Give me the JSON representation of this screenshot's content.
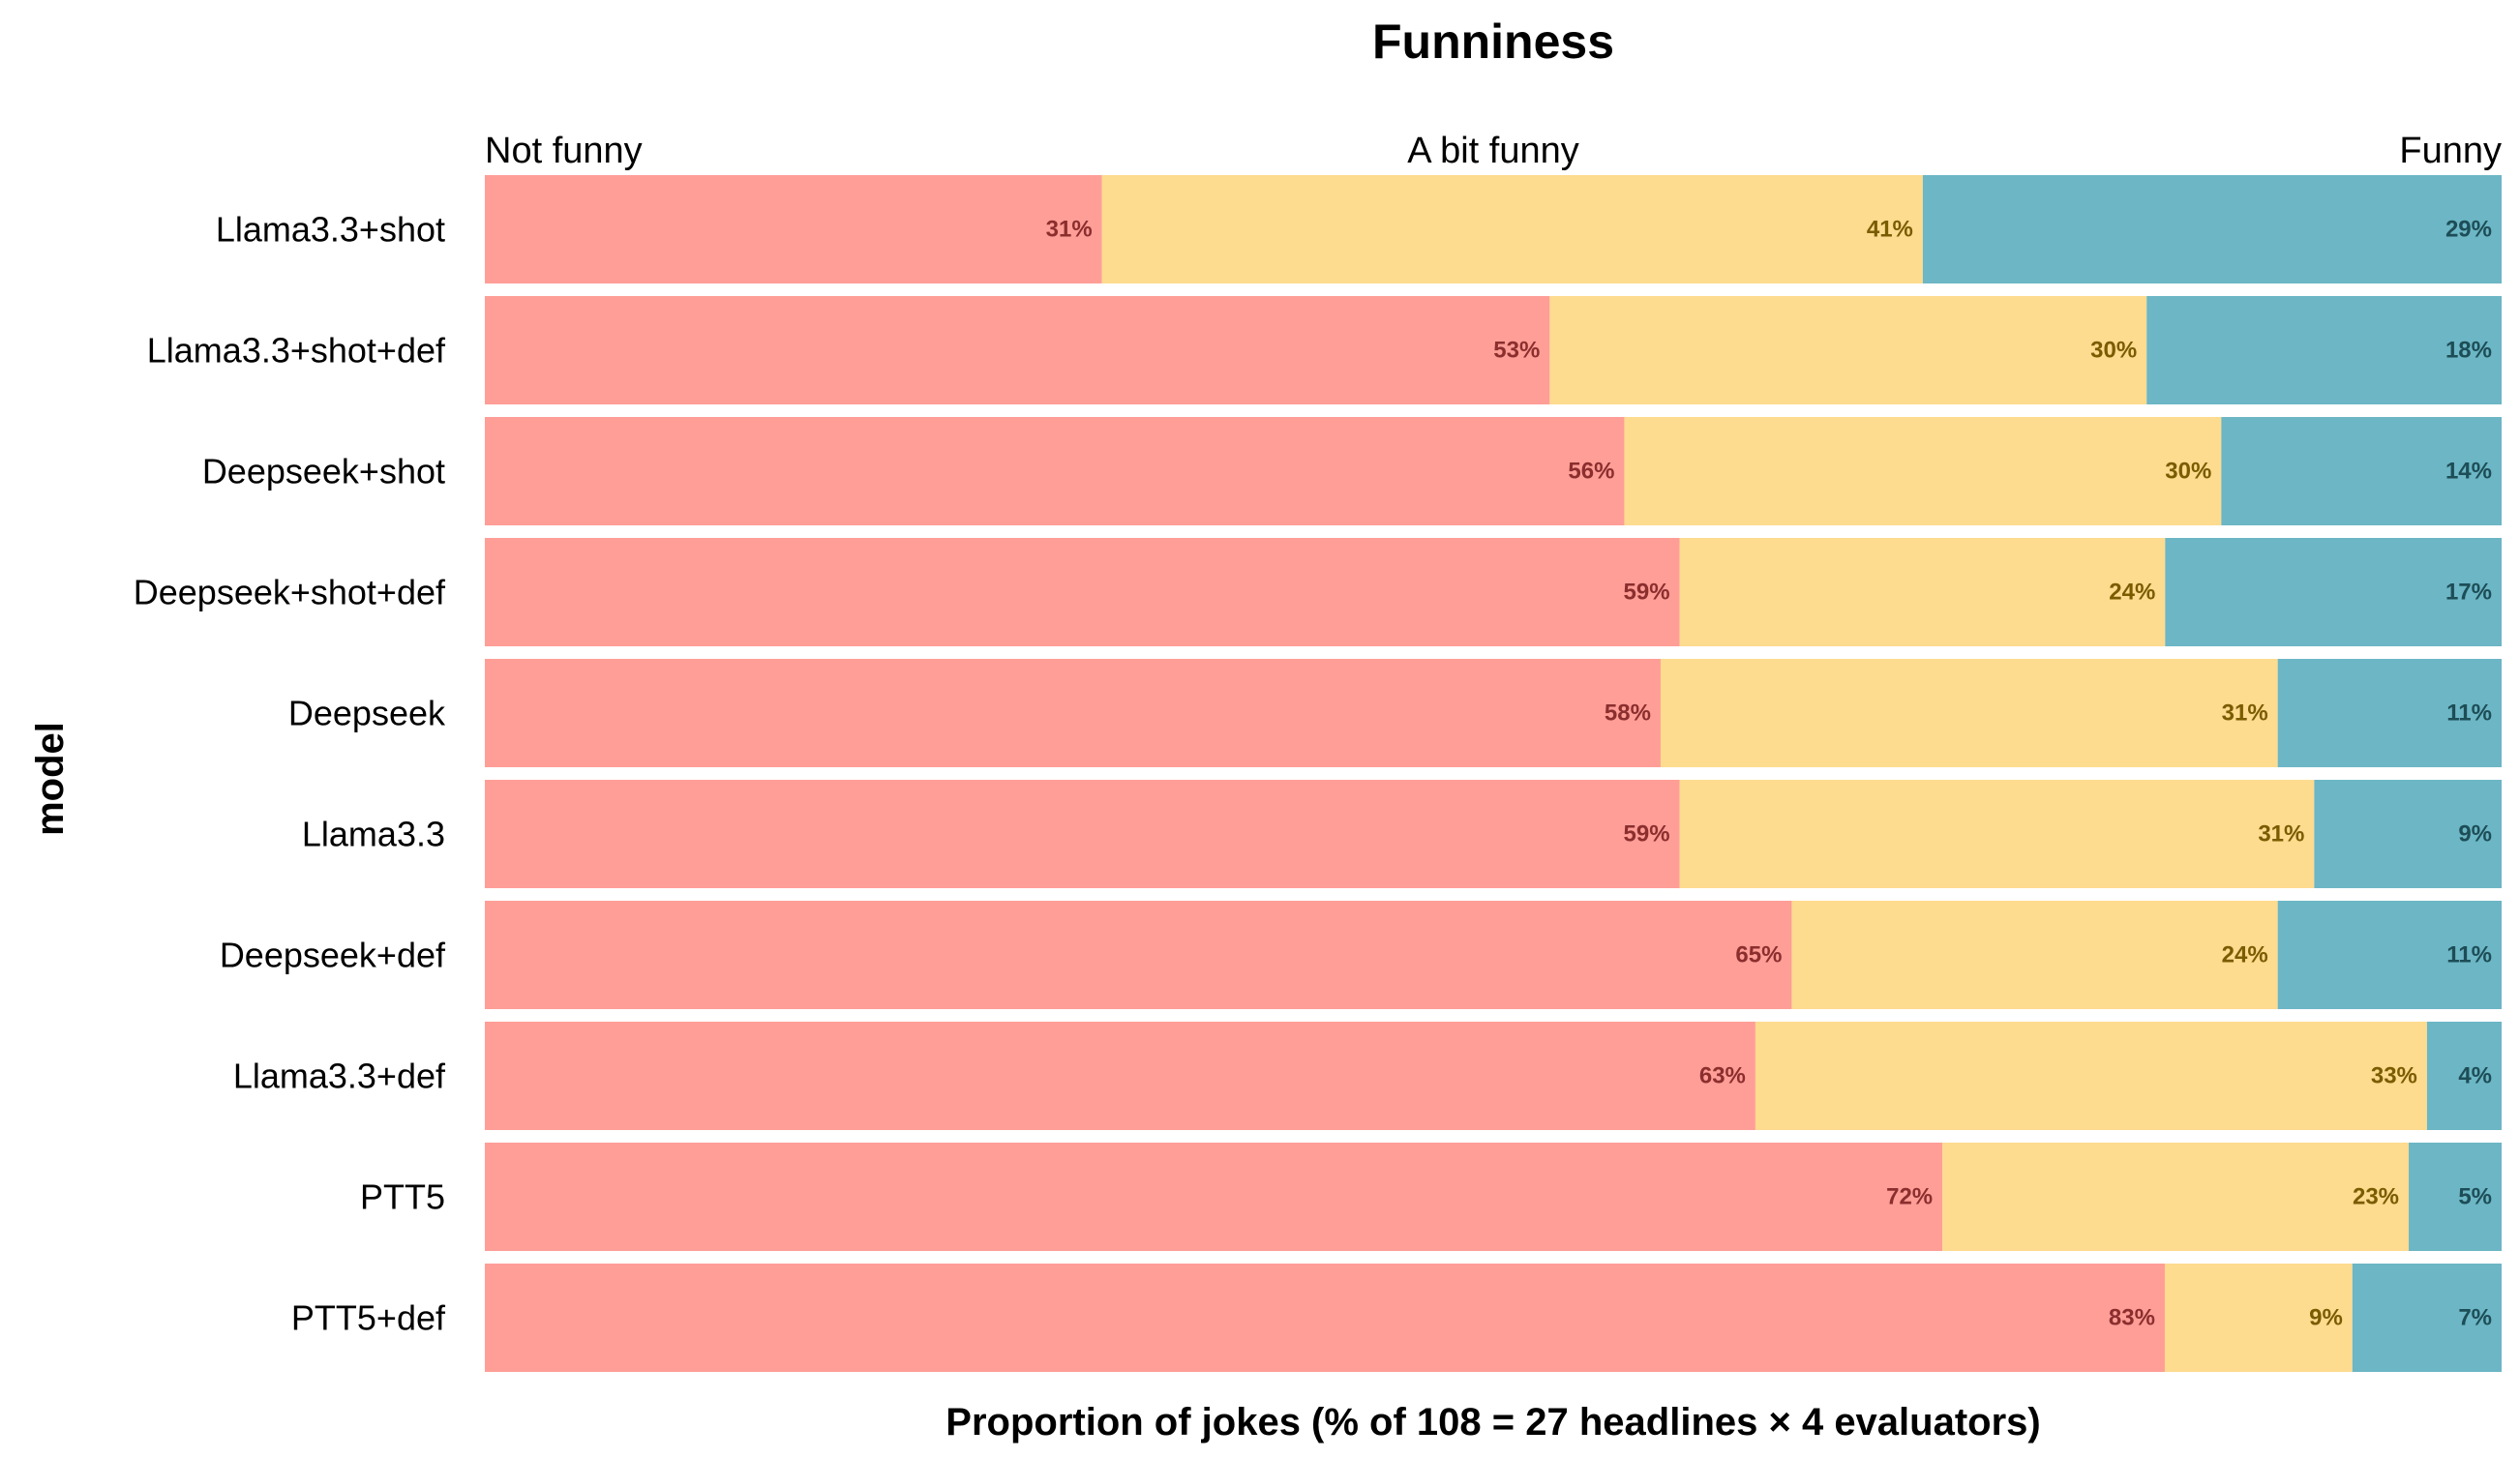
{
  "chart_data": {
    "type": "bar",
    "orientation": "horizontal",
    "stacked": true,
    "normalized": true,
    "title": "Funniness",
    "xlabel": "Proportion of jokes (% of 108 = 27 headlines × 4 evaluators)",
    "ylabel": "model",
    "xlim": [
      0,
      100
    ],
    "grid": false,
    "legend": "category labels along top",
    "categories": [
      "Llama3.3+shot",
      "Llama3.3+shot+def",
      "Deepseek+shot",
      "Deepseek+shot+def",
      "Deepseek",
      "Llama3.3",
      "Deepseek+def",
      "Llama3.3+def",
      "PTT5",
      "PTT5+def"
    ],
    "series": [
      {
        "name": "Not funny",
        "color": "#ff9e97",
        "label_color": "#8b2e2e",
        "values": [
          30.6,
          52.8,
          56.5,
          59.3,
          58.3,
          59.3,
          64.8,
          63.0,
          72.2,
          83.3
        ],
        "labels": [
          "31%",
          "53%",
          "56%",
          "59%",
          "58%",
          "59%",
          "65%",
          "63%",
          "72%",
          "83%"
        ]
      },
      {
        "name": "A bit funny",
        "color": "#fddb8f",
        "label_color": "#7a5c00",
        "values": [
          40.7,
          29.6,
          29.6,
          24.1,
          30.6,
          31.5,
          24.1,
          33.3,
          23.1,
          9.3
        ],
        "labels": [
          "41%",
          "30%",
          "30%",
          "24%",
          "31%",
          "31%",
          "24%",
          "33%",
          "23%",
          "9%"
        ]
      },
      {
        "name": "Funny",
        "color": "#6cb6c5",
        "label_color": "#1d4d56",
        "values": [
          28.7,
          17.6,
          13.9,
          16.7,
          11.1,
          9.3,
          11.1,
          3.7,
          4.6,
          7.4
        ],
        "labels": [
          "29%",
          "18%",
          "14%",
          "17%",
          "11%",
          "9%",
          "11%",
          "4%",
          "5%",
          "7%"
        ]
      }
    ]
  }
}
